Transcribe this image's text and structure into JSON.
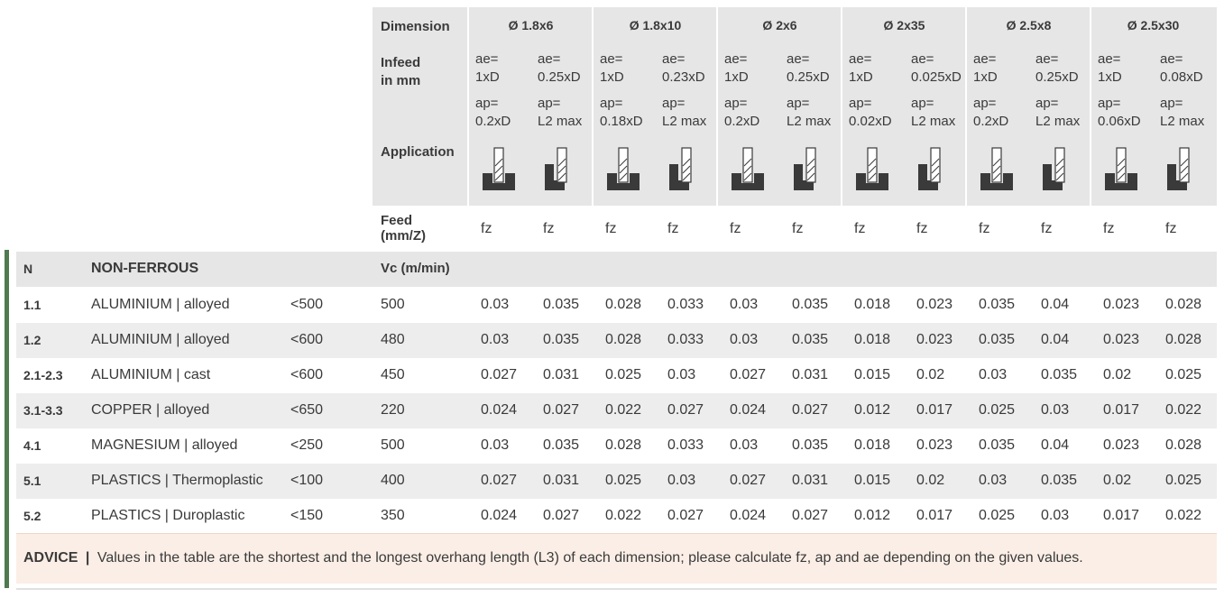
{
  "header": {
    "dimension_label": "Dimension",
    "infeed_label_1": "Infeed",
    "infeed_label_2": "in mm",
    "application_label": "Application",
    "feed_label_1": "Feed",
    "feed_label_2": "(mm/Z)",
    "dimensions": [
      "Ø 1.8x6",
      "Ø 1.8x10",
      "Ø 2x6",
      "Ø 2x35",
      "Ø 2.5x8",
      "Ø 2.5x30"
    ],
    "ae_labels": [
      "ae=",
      "ae=",
      "ae=",
      "ae=",
      "ae=",
      "ae=",
      "ae=",
      "ae=",
      "ae=",
      "ae=",
      "ae=",
      "ae="
    ],
    "ae_values": [
      "1xD",
      "0.25xD",
      "1xD",
      "0.23xD",
      "1xD",
      "0.25xD",
      "1xD",
      "0.025xD",
      "1xD",
      "0.25xD",
      "1xD",
      "0.08xD"
    ],
    "ap_labels": [
      "ap=",
      "ap=",
      "ap=",
      "ap=",
      "ap=",
      "ap=",
      "ap=",
      "ap=",
      "ap=",
      "ap=",
      "ap=",
      "ap="
    ],
    "ap_values": [
      "0.2xD",
      "L2 max",
      "0.18xD",
      "L2 max",
      "0.2xD",
      "L2 max",
      "0.02xD",
      "L2 max",
      "0.2xD",
      "L2 max",
      "0.06xD",
      "L2 max"
    ],
    "application_icons": [
      "slot-milling-icon",
      "side-milling-icon",
      "slot-milling-icon",
      "side-milling-icon",
      "slot-milling-icon",
      "side-milling-icon",
      "slot-milling-icon",
      "side-milling-icon",
      "slot-milling-icon",
      "side-milling-icon",
      "slot-milling-icon",
      "side-milling-icon"
    ],
    "feed_values": [
      "fz",
      "fz",
      "fz",
      "fz",
      "fz",
      "fz",
      "fz",
      "fz",
      "fz",
      "fz",
      "fz",
      "fz"
    ]
  },
  "group": {
    "code": "N",
    "name": "NON-FERROUS",
    "vc_label": "Vc (m/min)"
  },
  "rows": [
    {
      "code": "1.1",
      "material": "ALUMINIUM | alloyed",
      "strength": "<500",
      "vc": "500",
      "fz": [
        "0.03",
        "0.035",
        "0.028",
        "0.033",
        "0.03",
        "0.035",
        "0.018",
        "0.023",
        "0.035",
        "0.04",
        "0.023",
        "0.028"
      ]
    },
    {
      "code": "1.2",
      "material": "ALUMINIUM | alloyed",
      "strength": "<600",
      "vc": "480",
      "fz": [
        "0.03",
        "0.035",
        "0.028",
        "0.033",
        "0.03",
        "0.035",
        "0.018",
        "0.023",
        "0.035",
        "0.04",
        "0.023",
        "0.028"
      ]
    },
    {
      "code": "2.1-2.3",
      "material": "ALUMINIUM | cast",
      "strength": "<600",
      "vc": "450",
      "fz": [
        "0.027",
        "0.031",
        "0.025",
        "0.03",
        "0.027",
        "0.031",
        "0.015",
        "0.02",
        "0.03",
        "0.035",
        "0.02",
        "0.025"
      ]
    },
    {
      "code": "3.1-3.3",
      "material": "COPPER | alloyed",
      "strength": "<650",
      "vc": "220",
      "fz": [
        "0.024",
        "0.027",
        "0.022",
        "0.027",
        "0.024",
        "0.027",
        "0.012",
        "0.017",
        "0.025",
        "0.03",
        "0.017",
        "0.022"
      ]
    },
    {
      "code": "4.1",
      "material": "MAGNESIUM | alloyed",
      "strength": "<250",
      "vc": "500",
      "fz": [
        "0.03",
        "0.035",
        "0.028",
        "0.033",
        "0.03",
        "0.035",
        "0.018",
        "0.023",
        "0.035",
        "0.04",
        "0.023",
        "0.028"
      ]
    },
    {
      "code": "5.1",
      "material": "PLASTICS | Thermoplastic",
      "strength": "<100",
      "vc": "400",
      "fz": [
        "0.027",
        "0.031",
        "0.025",
        "0.03",
        "0.027",
        "0.031",
        "0.015",
        "0.02",
        "0.03",
        "0.035",
        "0.02",
        "0.025"
      ]
    },
    {
      "code": "5.2",
      "material": "PLASTICS | Duroplastic",
      "strength": "<150",
      "vc": "350",
      "fz": [
        "0.024",
        "0.027",
        "0.022",
        "0.027",
        "0.024",
        "0.027",
        "0.012",
        "0.017",
        "0.025",
        "0.03",
        "0.017",
        "0.022"
      ]
    }
  ],
  "advice": {
    "label": "ADVICE",
    "separator": "|",
    "text": "Values in the table are the shortest and the longest overhang length (L3) of each dimension; please calculate fz, ap and ae depending on the given values."
  },
  "colors": {
    "header_bg": "#e6e6e6",
    "row_shade": "#ededed",
    "accent_green": "#4f7a4f",
    "advice_bg": "#fbeee6",
    "icon_dark": "#3a3a3a"
  }
}
